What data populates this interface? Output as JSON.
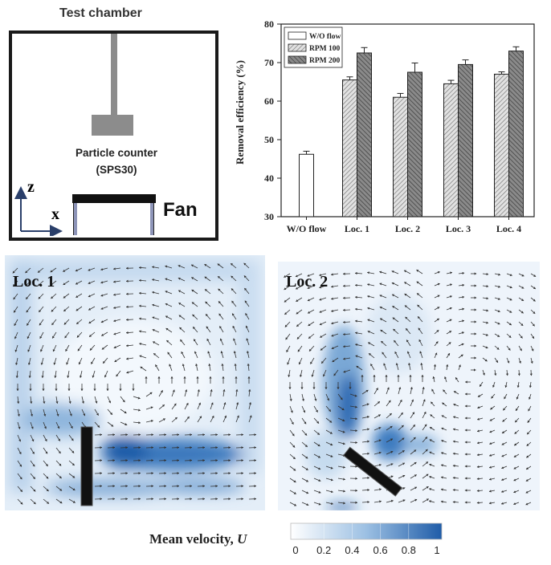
{
  "schematic": {
    "title": "Test chamber",
    "counter_label_line1": "Particle counter",
    "counter_label_line2": "(SPS30)",
    "fan_label": "Fan",
    "axis_z": "z",
    "axis_x": "x"
  },
  "chart_data": {
    "type": "bar",
    "categories": [
      "W/O flow",
      "Loc. 1",
      "Loc. 2",
      "Loc. 3",
      "Loc. 4"
    ],
    "series": [
      {
        "name": "W/O flow",
        "values": [
          46.2,
          null,
          null,
          null,
          null
        ],
        "errors": [
          0.8,
          null,
          null,
          null,
          null
        ],
        "color": "#ffffff"
      },
      {
        "name": "RPM 100",
        "values": [
          null,
          65.5,
          61.0,
          64.5,
          67.0
        ],
        "errors": [
          null,
          0.8,
          1.0,
          0.9,
          0.6
        ],
        "color": "#d0d0d0"
      },
      {
        "name": "RPM 200",
        "values": [
          null,
          72.5,
          67.5,
          69.5,
          73.0
        ],
        "errors": [
          null,
          1.4,
          2.4,
          1.2,
          1.1
        ],
        "color": "#7a7a7a"
      }
    ],
    "xlabel": "",
    "ylabel": "Removal efficiency (%)",
    "ylim": [
      30,
      80
    ],
    "yticks": [
      "30",
      "40",
      "50",
      "60",
      "70",
      "80"
    ],
    "legend_position": "top-left"
  },
  "flow_maps": {
    "loc1_label": "Loc. 1",
    "loc2_label": "Loc. 2"
  },
  "colorbar": {
    "title": "Mean velocity, ",
    "title_symbol": "U",
    "ticks": [
      "0",
      "0.2",
      "0.4",
      "0.6",
      "0.8",
      "1"
    ],
    "color_low": "#ffffff",
    "color_high": "#1f5ca8"
  }
}
